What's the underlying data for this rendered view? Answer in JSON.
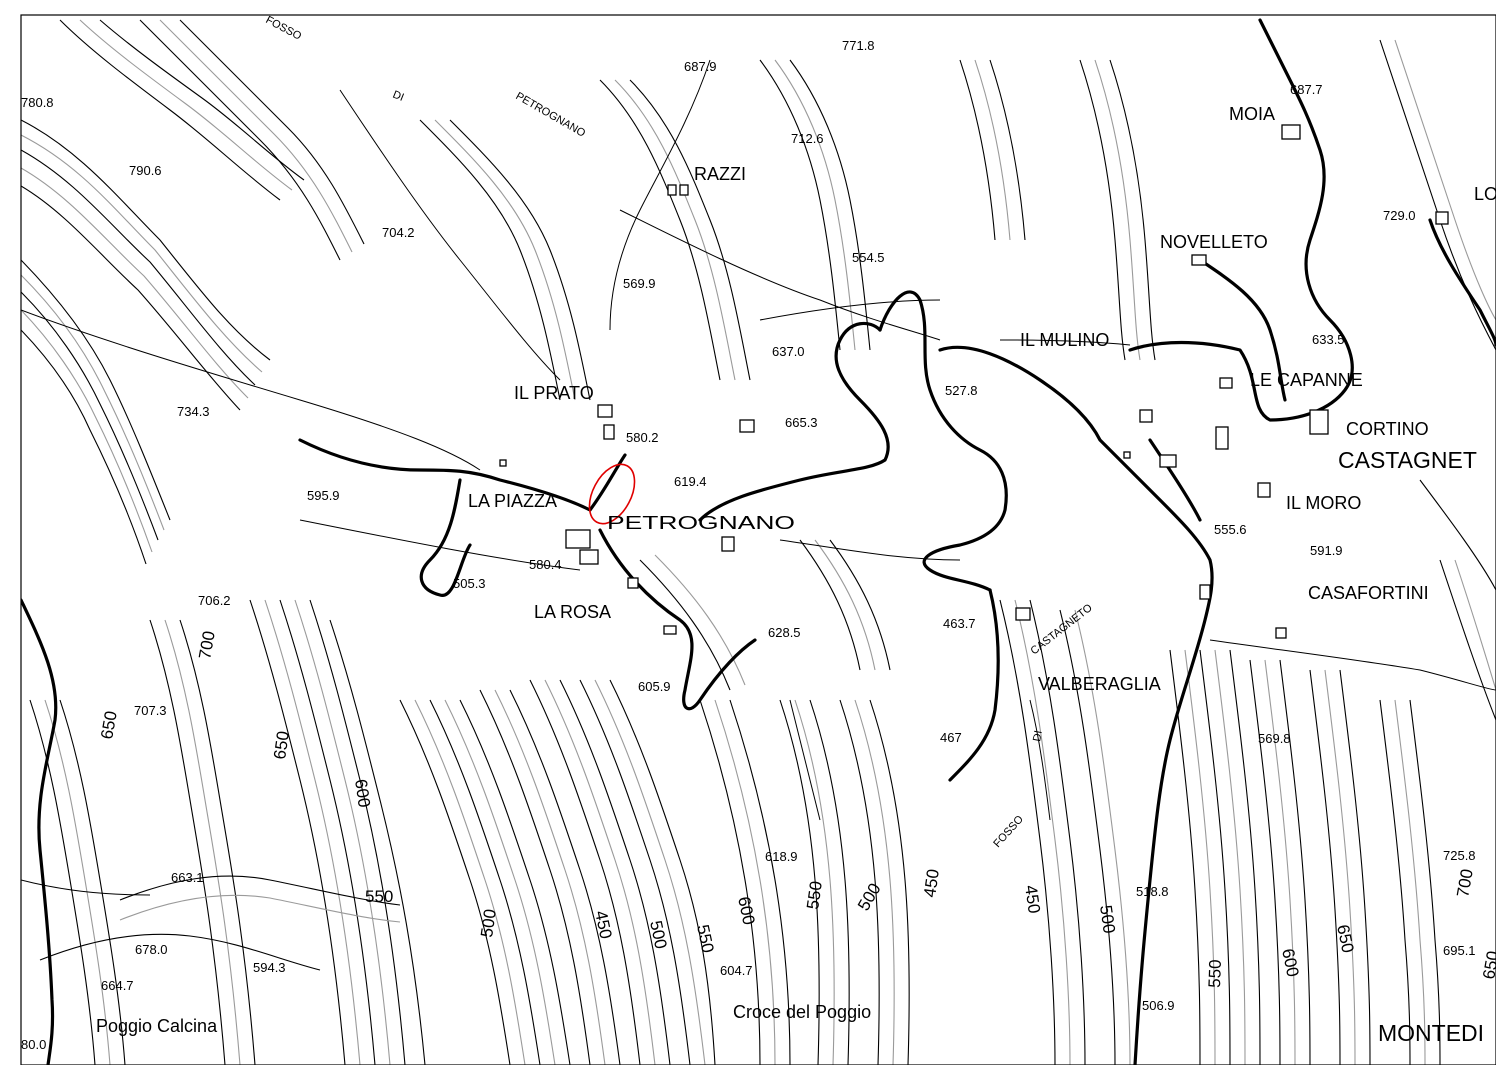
{
  "places": [
    {
      "id": "petrognano",
      "text": "PETROGNANO"
    },
    {
      "id": "la-piazza",
      "text": "LA PIAZZA"
    },
    {
      "id": "il-prato",
      "text": "IL PRATO"
    },
    {
      "id": "la-rosa",
      "text": "LA ROSA"
    },
    {
      "id": "razzi",
      "text": "RAZZI"
    },
    {
      "id": "moia",
      "text": "MOIA"
    },
    {
      "id": "novelleto",
      "text": "NOVELLETO"
    },
    {
      "id": "il-mulino",
      "text": "IL MULINO"
    },
    {
      "id": "le-capanne",
      "text": "LE CAPANNE"
    },
    {
      "id": "cortino",
      "text": "CORTINO"
    },
    {
      "id": "castagneto",
      "text": "CASTAGNET"
    },
    {
      "id": "il-moro",
      "text": "IL MORO"
    },
    {
      "id": "casafortini",
      "text": "CASAFORTINI"
    },
    {
      "id": "valberaglia",
      "text": "VALBERAGLIA"
    },
    {
      "id": "poggio-calcina",
      "text": "Poggio Calcina"
    },
    {
      "id": "croce-del-poggio",
      "text": "Croce del Poggio"
    },
    {
      "id": "montedi",
      "text": "MONTEDI"
    },
    {
      "id": "lo",
      "text": "LO"
    }
  ],
  "waterways": [
    {
      "id": "fosso-1",
      "text": "FOSSO"
    },
    {
      "id": "di-1",
      "text": "DI"
    },
    {
      "id": "petrognano-fosso",
      "text": "PETROGNANO"
    },
    {
      "id": "castagneto-fosso",
      "text": "CASTAGNETO"
    },
    {
      "id": "di-2",
      "text": "DI"
    },
    {
      "id": "fosso-2",
      "text": "FOSSO"
    }
  ],
  "spot_heights": [
    "780.8",
    "790.6",
    "704.2",
    "687.9",
    "771.8",
    "712.6",
    "569.9",
    "637.0",
    "554.5",
    "527.8",
    "580.2",
    "619.4",
    "665.3",
    "595.9",
    "505.3",
    "580.4",
    "734.3",
    "706.2",
    "707.3",
    "628.5",
    "605.9",
    "463.7",
    "467",
    "663.1",
    "678.0",
    "664.7",
    "594.3",
    "80.0",
    "618.9",
    "604.7",
    "518.8",
    "506.9",
    "569.8",
    "591.9",
    "555.6",
    "633.5",
    "729.0",
    "687.7",
    "725.8",
    "695.1"
  ],
  "contour_labels": [
    "700",
    "650",
    "650",
    "600",
    "550",
    "500",
    "450",
    "500",
    "550",
    "600",
    "550",
    "500",
    "450",
    "450",
    "500",
    "550",
    "600",
    "650",
    "700",
    "650"
  ],
  "marker": {
    "color": "#e00000",
    "shape": "ellipse"
  }
}
